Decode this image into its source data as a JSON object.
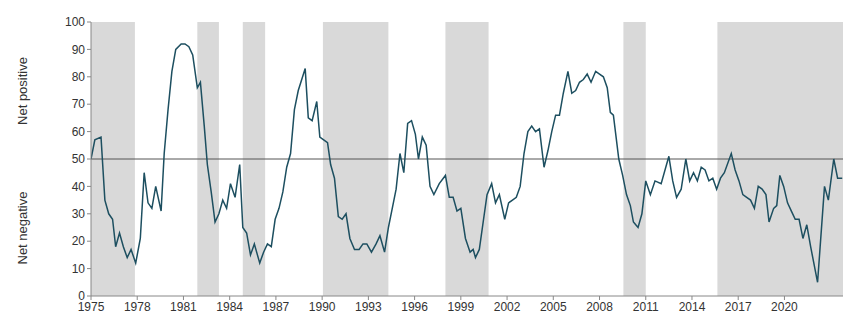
{
  "chart_data": {
    "type": "line",
    "annotations": [
      "Net positive",
      "Net negative"
    ],
    "color": "#1d4f60",
    "shade_color": "#d9d9d9",
    "reference_line": 50,
    "grid": false,
    "xlim": [
      1975,
      2023.8
    ],
    "xticks": [
      1975,
      1978,
      1981,
      1984,
      1987,
      1990,
      1993,
      1996,
      1999,
      2002,
      2005,
      2008,
      2011,
      2014,
      2017,
      2020
    ],
    "ylim": [
      0,
      100
    ],
    "yticks": [
      0,
      10,
      20,
      30,
      40,
      50,
      60,
      70,
      80,
      90,
      100
    ],
    "shaded_regions": [
      [
        1975,
        1977.85
      ],
      [
        1981.9,
        1983.3
      ],
      [
        1984.85,
        1986.3
      ],
      [
        1990.05,
        1994.3
      ],
      [
        1998.0,
        2000.8
      ],
      [
        2009.55,
        2011.0
      ],
      [
        2015.65,
        2023.8
      ]
    ],
    "x": [
      1975.0,
      1975.25,
      1975.65,
      1975.9,
      1976.15,
      1976.4,
      1976.6,
      1976.85,
      1977.1,
      1977.35,
      1977.6,
      1977.9,
      1978.2,
      1978.45,
      1978.7,
      1978.95,
      1979.2,
      1979.55,
      1979.75,
      1980.0,
      1980.25,
      1980.5,
      1980.85,
      1981.1,
      1981.35,
      1981.6,
      1981.9,
      1982.1,
      1982.35,
      1982.55,
      1982.8,
      1983.05,
      1983.3,
      1983.55,
      1983.8,
      1984.05,
      1984.35,
      1984.65,
      1984.85,
      1985.1,
      1985.35,
      1985.6,
      1985.95,
      1986.2,
      1986.45,
      1986.7,
      1986.95,
      1987.2,
      1987.45,
      1987.7,
      1987.95,
      1988.2,
      1988.45,
      1988.9,
      1989.1,
      1989.35,
      1989.65,
      1989.85,
      1990.1,
      1990.35,
      1990.55,
      1990.8,
      1991.05,
      1991.3,
      1991.55,
      1991.8,
      1992.1,
      1992.4,
      1992.65,
      1992.9,
      1993.2,
      1993.5,
      1993.75,
      1994.05,
      1994.3,
      1994.55,
      1994.8,
      1995.05,
      1995.3,
      1995.55,
      1995.8,
      1996.05,
      1996.25,
      1996.5,
      1996.75,
      1997.0,
      1997.25,
      1997.6,
      1998.0,
      1998.25,
      1998.5,
      1998.75,
      1999.0,
      1999.3,
      1999.6,
      1999.8,
      1999.95,
      2000.2,
      2000.45,
      2000.7,
      2001.0,
      2001.25,
      2001.5,
      2001.85,
      2002.1,
      2002.35,
      2002.6,
      2002.85,
      2003.1,
      2003.35,
      2003.6,
      2003.85,
      2004.1,
      2004.4,
      2004.65,
      2004.9,
      2005.15,
      2005.4,
      2005.65,
      2005.95,
      2006.2,
      2006.45,
      2006.7,
      2006.95,
      2007.2,
      2007.45,
      2007.75,
      2008.0,
      2008.25,
      2008.5,
      2008.7,
      2008.9,
      2009.25,
      2009.5,
      2009.75,
      2010.0,
      2010.2,
      2010.35,
      2010.5,
      2010.75,
      2011.0,
      2011.3,
      2011.6,
      2012.0,
      2012.5,
      2012.75,
      2013.0,
      2013.3,
      2013.6,
      2013.85,
      2014.1,
      2014.35,
      2014.6,
      2014.85,
      2015.1,
      2015.35,
      2015.6,
      2015.85,
      2016.1,
      2016.55,
      2016.8,
      2017.05,
      2017.3,
      2017.55,
      2017.8,
      2018.05,
      2018.3,
      2018.55,
      2018.8,
      2019.0,
      2019.3,
      2019.5,
      2019.7,
      2019.95,
      2020.2,
      2020.45,
      2020.7,
      2020.95,
      2021.2,
      2021.45,
      2021.7,
      2022.15,
      2022.6,
      2022.85,
      2023.2,
      2023.45,
      2023.75
    ],
    "values": [
      50,
      57,
      58,
      35,
      30,
      28,
      18,
      23,
      18,
      14,
      17,
      12,
      21,
      45,
      34,
      32,
      40,
      31,
      52,
      68,
      82,
      90,
      92,
      92,
      91,
      88,
      76,
      78,
      62,
      48,
      38,
      27,
      30,
      35,
      32,
      41,
      36,
      48,
      25,
      23,
      15,
      19,
      12,
      16,
      19,
      18,
      28,
      32,
      38,
      47,
      52,
      68,
      75,
      83,
      65,
      64,
      71,
      58,
      57,
      56,
      48,
      43,
      29,
      28,
      30,
      21,
      17,
      17,
      19,
      19,
      16,
      19,
      22,
      16,
      25,
      32,
      39,
      52,
      45,
      63,
      64,
      59,
      50,
      58,
      55,
      40,
      37,
      41,
      44,
      36,
      36,
      31,
      32,
      21,
      16,
      17,
      14,
      17,
      27,
      37,
      41,
      34,
      37,
      28,
      34,
      35,
      36,
      40,
      52,
      60,
      62,
      60,
      61,
      47,
      53,
      60,
      66,
      66,
      74,
      82,
      74,
      75,
      78,
      79,
      81,
      78,
      82,
      81,
      80,
      76,
      67,
      66,
      50,
      44,
      37,
      33,
      27,
      26,
      25,
      30,
      42,
      37,
      42,
      41,
      51,
      42,
      36,
      39,
      50,
      42,
      45,
      42,
      47,
      46,
      42,
      43,
      39,
      43,
      45,
      52,
      46,
      42,
      37,
      36,
      35,
      32,
      40,
      39,
      37,
      27,
      32,
      33,
      44,
      40,
      34,
      31,
      28,
      28,
      21,
      26,
      18,
      5,
      40,
      35,
      50,
      43,
      43
    ]
  }
}
